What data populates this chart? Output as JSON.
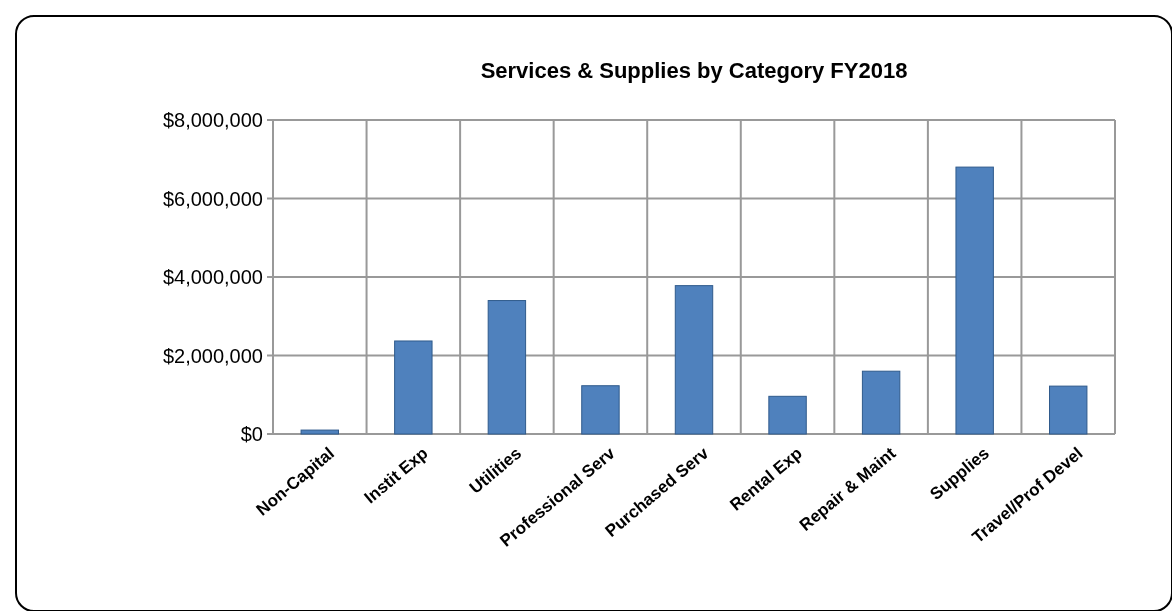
{
  "chart_data": {
    "type": "bar",
    "title": "Services & Supplies by Category FY2018",
    "categories": [
      "Non-Capital",
      "Instit Exp",
      "Utilities",
      "Professional Serv",
      "Purchased Serv",
      "Rental Exp",
      "Repair & Maint",
      "Supplies",
      "Travel/Prof Devel"
    ],
    "values": [
      100000,
      2370000,
      3400000,
      1230000,
      3780000,
      960000,
      1600000,
      6800000,
      1220000
    ],
    "color": "#4f81bd",
    "ylim": [
      0,
      8000000
    ],
    "yticks": [
      {
        "value": 0,
        "label": "$0"
      },
      {
        "value": 2000000,
        "label": "$2,000,000"
      },
      {
        "value": 4000000,
        "label": "$4,000,000"
      },
      {
        "value": 6000000,
        "label": "$6,000,000"
      },
      {
        "value": 8000000,
        "label": "$8,000,000"
      }
    ],
    "grid": true
  }
}
